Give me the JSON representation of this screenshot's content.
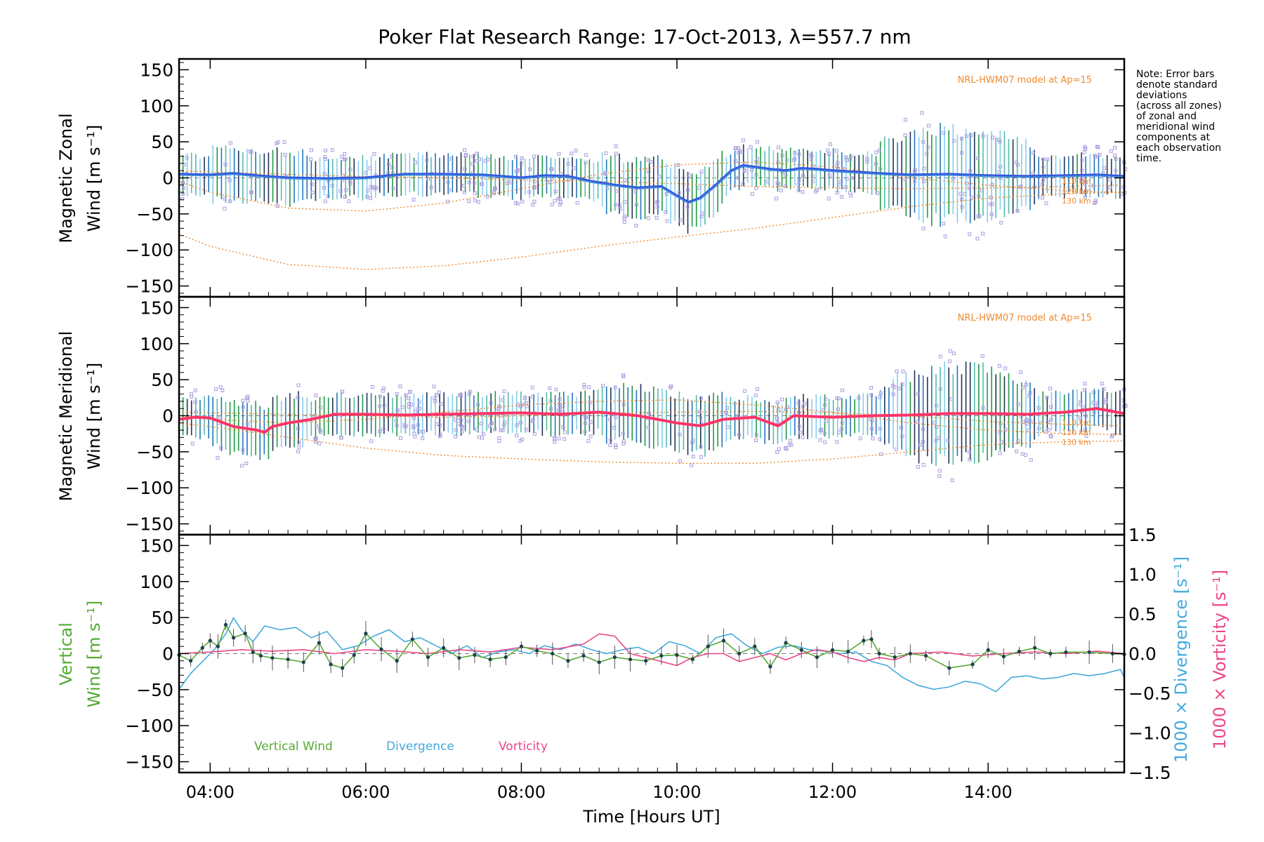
{
  "chart_data": [
    {
      "panel": "zonal",
      "type": "line",
      "title": "Poker Flat Research Range: 17-Oct-2013, λ=557.7 nm",
      "ylabel_line1": "Magnetic Zonal",
      "ylabel_line2": "Wind [m s⁻¹]",
      "ylim": [
        -165,
        165
      ],
      "xlim": [
        3.6,
        15.75
      ],
      "yticks": [
        -150,
        -100,
        -50,
        0,
        50,
        100,
        150
      ],
      "model_label": "NRL-HWM07 model at Ap=15",
      "model_alt_labels": [
        "110 km",
        "120 km",
        "130 km"
      ],
      "series": [
        {
          "name": "Mean zonal wind",
          "color": "#3355dd",
          "x": [
            3.6,
            4.0,
            4.3,
            4.6,
            5.0,
            5.5,
            6.0,
            6.5,
            7.0,
            7.5,
            8.0,
            8.3,
            8.6,
            8.9,
            9.2,
            9.5,
            9.8,
            10.0,
            10.15,
            10.3,
            10.5,
            10.7,
            10.85,
            11.0,
            11.2,
            11.4,
            11.6,
            11.8,
            12.0,
            12.3,
            12.6,
            13.0,
            13.5,
            14.0,
            14.5,
            15.0,
            15.4,
            15.75
          ],
          "values": [
            5,
            4,
            6,
            3,
            0,
            -1,
            0,
            5,
            5,
            4,
            0,
            3,
            2,
            -5,
            -10,
            -14,
            -12,
            -25,
            -34,
            -28,
            -10,
            10,
            17,
            15,
            12,
            10,
            13,
            12,
            10,
            8,
            6,
            4,
            5,
            3,
            2,
            3,
            4,
            2
          ]
        },
        {
          "name": "NRL-HWM07 110 km",
          "color": "#f08a30",
          "x": [
            3.6,
            4.0,
            5.0,
            6.0,
            7.0,
            8.0,
            9.0,
            10.0,
            11.0,
            12.0,
            13.0,
            14.0,
            15.0,
            15.75
          ],
          "values": [
            10,
            8,
            5,
            2,
            0,
            -3,
            -5,
            -8,
            -12,
            -14,
            -15,
            -14,
            -12,
            -10
          ]
        },
        {
          "name": "NRL-HWM07 120 km",
          "color": "#f08a30",
          "x": [
            3.6,
            4.0,
            5.0,
            6.0,
            7.0,
            8.0,
            9.0,
            10.0,
            11.0,
            12.0,
            13.0,
            14.0,
            15.0,
            15.75
          ],
          "values": [
            -5,
            -20,
            -42,
            -46,
            -35,
            -15,
            5,
            18,
            22,
            15,
            0,
            -10,
            -18,
            -20
          ]
        },
        {
          "name": "NRL-HWM07 130 km",
          "color": "#f08a30",
          "x": [
            3.6,
            4.0,
            5.0,
            6.0,
            7.0,
            8.0,
            9.0,
            10.0,
            11.0,
            12.0,
            13.0,
            14.0,
            15.0,
            15.75
          ],
          "values": [
            -78,
            -95,
            -120,
            -127,
            -122,
            -110,
            -95,
            -82,
            -70,
            -55,
            -40,
            -28,
            -22,
            -20
          ]
        }
      ],
      "note": [
        "Note: Error bars",
        "denote standard",
        "deviations",
        "(across all zones)",
        "of zonal and",
        "meridional wind",
        "components at",
        "each observation",
        "time."
      ]
    },
    {
      "panel": "meridional",
      "type": "line",
      "ylabel_line1": "Magnetic Meridional",
      "ylabel_line2": "Wind [m s⁻¹]",
      "ylim": [
        -165,
        165
      ],
      "yticks": [
        -150,
        -100,
        -50,
        0,
        50,
        100,
        150
      ],
      "model_label": "NRL-HWM07 model at Ap=15",
      "model_alt_labels": [
        "110 km",
        "120 km",
        "130 km"
      ],
      "series": [
        {
          "name": "Mean meridional wind",
          "color": "#ff3366",
          "x": [
            3.6,
            3.8,
            4.0,
            4.3,
            4.6,
            4.7,
            4.8,
            5.0,
            5.3,
            5.6,
            6.0,
            6.5,
            7.0,
            7.5,
            8.0,
            8.5,
            9.0,
            9.5,
            10.0,
            10.3,
            10.6,
            11.0,
            11.3,
            11.5,
            12.0,
            12.5,
            13.0,
            13.5,
            14.0,
            14.5,
            15.0,
            15.4,
            15.75
          ],
          "values": [
            -5,
            -2,
            -3,
            -15,
            -20,
            -23,
            -15,
            -10,
            -5,
            2,
            2,
            1,
            2,
            3,
            4,
            2,
            5,
            0,
            -10,
            -14,
            -5,
            -2,
            -14,
            0,
            -2,
            0,
            1,
            3,
            3,
            2,
            5,
            10,
            3
          ]
        },
        {
          "name": "NRL-HWM07 110 km",
          "color": "#f08a30",
          "x": [
            3.6,
            4.0,
            5.0,
            6.0,
            7.0,
            8.0,
            9.0,
            10.0,
            11.0,
            12.0,
            13.0,
            14.0,
            15.0,
            15.75
          ],
          "values": [
            5,
            4,
            2,
            0,
            -2,
            0,
            3,
            5,
            6,
            4,
            0,
            -8,
            -12,
            -14
          ]
        },
        {
          "name": "NRL-HWM07 120 km",
          "color": "#f08a30",
          "x": [
            3.6,
            4.0,
            5.0,
            6.0,
            7.0,
            8.0,
            9.0,
            10.0,
            11.0,
            12.0,
            13.0,
            14.0,
            15.0,
            15.75
          ],
          "values": [
            0,
            -5,
            -10,
            -5,
            5,
            15,
            20,
            22,
            15,
            5,
            -10,
            -20,
            -25,
            -26
          ]
        },
        {
          "name": "NRL-HWM07 130 km",
          "color": "#f08a30",
          "x": [
            3.6,
            4.0,
            5.0,
            6.0,
            7.0,
            8.0,
            9.0,
            10.0,
            11.0,
            12.0,
            13.0,
            14.0,
            15.0,
            15.75
          ],
          "values": [
            -10,
            -15,
            -30,
            -45,
            -55,
            -60,
            -64,
            -66,
            -66,
            -60,
            -50,
            -40,
            -36,
            -35
          ]
        }
      ]
    },
    {
      "panel": "vertical",
      "type": "line",
      "ylabel_line1": "Vertical",
      "ylabel_line2": "Wind [m s⁻¹]",
      "ylim": [
        -165,
        165
      ],
      "yticks": [
        -150,
        -100,
        -50,
        0,
        50,
        100,
        150
      ],
      "y2lim": [
        -1.5,
        1.5
      ],
      "y2ticks": [
        "-1.5",
        "-1.0",
        "-0.5",
        "0.0",
        "0.5",
        "1.0",
        "1.5"
      ],
      "y2label_divergence": "1000 × Divergence [s⁻¹]",
      "y2label_vorticity": "1000 × Vorticity [s⁻¹]",
      "xlabel": "Time [Hours UT]",
      "xticks": [
        4,
        6,
        8,
        10,
        12,
        14
      ],
      "xtick_labels": [
        "04:00",
        "06:00",
        "08:00",
        "10:00",
        "12:00",
        "14:00"
      ],
      "legend": [
        "Vertical Wind",
        "Divergence",
        "Vorticity"
      ],
      "series": [
        {
          "name": "Vertical Wind",
          "color": "#55aa33",
          "x": [
            3.6,
            3.75,
            3.9,
            4.0,
            4.1,
            4.2,
            4.3,
            4.45,
            4.55,
            4.65,
            4.8,
            5.0,
            5.2,
            5.4,
            5.55,
            5.7,
            5.85,
            6.0,
            6.2,
            6.4,
            6.6,
            6.8,
            7.0,
            7.2,
            7.4,
            7.6,
            7.8,
            8.0,
            8.2,
            8.4,
            8.6,
            8.8,
            9.0,
            9.2,
            9.4,
            9.6,
            9.8,
            10.0,
            10.2,
            10.4,
            10.6,
            10.8,
            11.0,
            11.2,
            11.4,
            11.6,
            11.8,
            12.0,
            12.2,
            12.4,
            12.5,
            12.6,
            12.8,
            13.0,
            13.2,
            13.5,
            13.8,
            14.0,
            14.2,
            14.4,
            14.6,
            14.8,
            15.0,
            15.3,
            15.6,
            15.75
          ],
          "values": [
            -2,
            -10,
            8,
            18,
            10,
            40,
            22,
            28,
            2,
            -3,
            -6,
            -8,
            -12,
            15,
            -15,
            -20,
            -2,
            28,
            6,
            -10,
            20,
            -5,
            8,
            -6,
            -2,
            -8,
            -5,
            10,
            4,
            0,
            -10,
            -3,
            -12,
            -5,
            -8,
            -10,
            -3,
            -2,
            -8,
            10,
            18,
            0,
            10,
            -18,
            15,
            5,
            -5,
            5,
            3,
            18,
            20,
            0,
            -5,
            0,
            -3,
            -20,
            -15,
            5,
            -4,
            3,
            8,
            0,
            2,
            2,
            0,
            -1
          ]
        },
        {
          "name": "Divergence",
          "color": "#44aadd",
          "x": [
            3.6,
            3.75,
            3.9,
            4.05,
            4.2,
            4.3,
            4.4,
            4.55,
            4.7,
            4.9,
            5.1,
            5.3,
            5.5,
            5.7,
            5.9,
            6.1,
            6.3,
            6.5,
            6.7,
            6.9,
            7.1,
            7.3,
            7.5,
            7.7,
            7.9,
            8.1,
            8.3,
            8.5,
            8.7,
            8.9,
            9.1,
            9.3,
            9.5,
            9.7,
            9.9,
            10.1,
            10.3,
            10.5,
            10.7,
            10.9,
            11.1,
            11.3,
            11.5,
            11.7,
            11.9,
            12.1,
            12.3,
            12.5,
            12.7,
            12.9,
            13.1,
            13.3,
            13.5,
            13.7,
            13.9,
            14.1,
            14.3,
            14.5,
            14.7,
            14.9,
            15.1,
            15.3,
            15.5,
            15.7,
            15.75
          ],
          "values": [
            -0.45,
            -0.25,
            -0.1,
            0.05,
            0.25,
            0.45,
            0.3,
            0.15,
            0.35,
            0.3,
            0.33,
            0.2,
            0.28,
            0.05,
            0.1,
            0.22,
            0.3,
            0.15,
            0.2,
            0.1,
            0.0,
            0.1,
            -0.05,
            0.02,
            0.05,
            0.0,
            0.1,
            0.05,
            0.12,
            0.05,
            0.0,
            0.05,
            0.08,
            0.0,
            0.15,
            0.1,
            0.0,
            0.2,
            0.25,
            0.1,
            0.0,
            0.08,
            0.1,
            0.05,
            0.03,
            0.0,
            0.02,
            -0.1,
            -0.15,
            -0.3,
            -0.4,
            -0.45,
            -0.42,
            -0.35,
            -0.38,
            -0.48,
            -0.3,
            -0.28,
            -0.32,
            -0.3,
            -0.25,
            -0.28,
            -0.25,
            -0.2,
            -0.3
          ]
        },
        {
          "name": "Vorticity",
          "color": "#ee4488",
          "x": [
            3.6,
            4.0,
            4.4,
            4.8,
            5.2,
            5.6,
            6.0,
            6.4,
            6.8,
            7.2,
            7.6,
            8.0,
            8.4,
            8.8,
            9.0,
            9.2,
            9.4,
            9.6,
            9.8,
            10.0,
            10.2,
            10.4,
            10.6,
            10.8,
            11.0,
            11.2,
            11.4,
            11.6,
            11.8,
            12.0,
            12.2,
            12.4,
            12.6,
            12.8,
            13.0,
            13.4,
            13.8,
            14.2,
            14.6,
            15.0,
            15.4,
            15.75
          ],
          "values": [
            0.0,
            0.02,
            0.05,
            0.03,
            0.05,
            0.0,
            0.05,
            0.03,
            0.0,
            0.05,
            0.02,
            0.08,
            0.05,
            0.12,
            0.25,
            0.22,
            0.0,
            -0.05,
            -0.1,
            -0.15,
            -0.05,
            0.0,
            0.0,
            -0.1,
            -0.05,
            0.0,
            -0.08,
            0.0,
            0.05,
            0.02,
            -0.05,
            -0.1,
            -0.05,
            -0.08,
            0.0,
            0.02,
            -0.03,
            0.0,
            0.02,
            0.0,
            0.03,
            0.0
          ]
        }
      ]
    }
  ]
}
